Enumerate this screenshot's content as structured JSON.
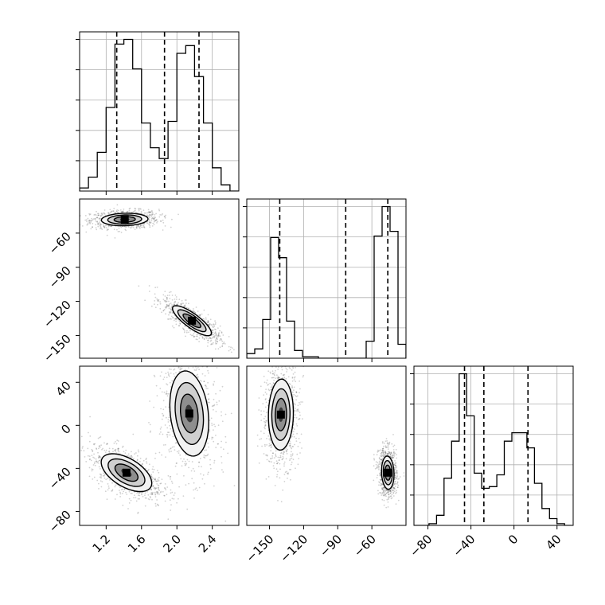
{
  "chart_data": {
    "type": "corner",
    "parameters": [
      {
        "range": [
          0.9,
          2.7
        ],
        "ticks": [
          1.2,
          1.6,
          2.0,
          2.4
        ],
        "tick_labels": [
          "1.2",
          "1.6",
          "2.0",
          "2.4"
        ]
      },
      {
        "range": [
          -170,
          -30
        ],
        "ticks": [
          -150,
          -120,
          -90,
          -60
        ],
        "tick_labels": [
          "−150",
          "−120",
          "−90",
          "−60"
        ]
      },
      {
        "range": [
          -93,
          55
        ],
        "ticks": [
          -80,
          -40,
          0,
          40
        ],
        "tick_labels": [
          "−80",
          "−40",
          "0",
          "40"
        ]
      }
    ],
    "quantile_lines": [
      [
        1.32,
        1.86,
        2.25
      ],
      [
        -141,
        -83,
        -46
      ],
      [
        -46,
        -28,
        13
      ]
    ],
    "histograms": [
      {
        "bin_edges": [
          0.9,
          1.0,
          1.1,
          1.2,
          1.3,
          1.4,
          1.5,
          1.6,
          1.7,
          1.8,
          1.9,
          2.0,
          2.1,
          2.2,
          2.3,
          2.4,
          2.5,
          2.6,
          2.7
        ],
        "counts": [
          2,
          9,
          25,
          54,
          95,
          98,
          79,
          44,
          28,
          21,
          45,
          89,
          94,
          74,
          44,
          15,
          4,
          0
        ]
      },
      {
        "bin_edges": [
          -170,
          -163,
          -156,
          -149,
          -142,
          -135,
          -128,
          -121,
          -114,
          -107,
          -100,
          -93,
          -86,
          -79,
          -72,
          -65,
          -58,
          -51,
          -44,
          -37,
          -30
        ],
        "counts": [
          3,
          6,
          25,
          78,
          65,
          24,
          5,
          1,
          1,
          0,
          0,
          0,
          0,
          0,
          0,
          11,
          79,
          98,
          82,
          9
        ]
      },
      {
        "bin_edges": [
          -93,
          -86,
          -79,
          -72,
          -65,
          -58,
          -51,
          -44,
          -37,
          -30,
          -23,
          -16,
          -9,
          -2,
          5,
          12,
          19,
          26,
          33,
          40,
          47,
          54
        ],
        "counts": [
          0,
          0,
          1,
          6,
          28,
          50,
          90,
          65,
          31,
          22,
          23,
          30,
          50,
          55,
          55,
          46,
          25,
          10,
          4,
          1,
          0
        ]
      }
    ],
    "density_2d": [
      {
        "x_param": 0,
        "y_param": 1,
        "clusters": [
          {
            "center": [
              1.41,
              -48
            ],
            "spread": [
              0.12,
              2.5
            ],
            "corr": 0.1,
            "weight": 0.5
          },
          {
            "center": [
              2.17,
              -137
            ],
            "spread": [
              0.1,
              6
            ],
            "corr": -0.82,
            "weight": 0.5
          }
        ]
      },
      {
        "x_param": 0,
        "y_param": 2,
        "clusters": [
          {
            "center": [
              1.43,
              -44
            ],
            "spread": [
              0.13,
              8
            ],
            "corr": -0.55,
            "weight": 0.5
          },
          {
            "center": [
              2.14,
              11
            ],
            "spread": [
              0.1,
              18
            ],
            "corr": -0.2,
            "weight": 0.5
          }
        ]
      },
      {
        "x_param": 1,
        "y_param": 2,
        "clusters": [
          {
            "center": [
              -140,
              10
            ],
            "spread": [
              5,
              15
            ],
            "corr": 0.05,
            "weight": 0.5
          },
          {
            "center": [
              -46,
              -44
            ],
            "spread": [
              2.5,
              7
            ],
            "corr": -0.1,
            "weight": 0.5
          }
        ]
      }
    ],
    "grid": true
  }
}
